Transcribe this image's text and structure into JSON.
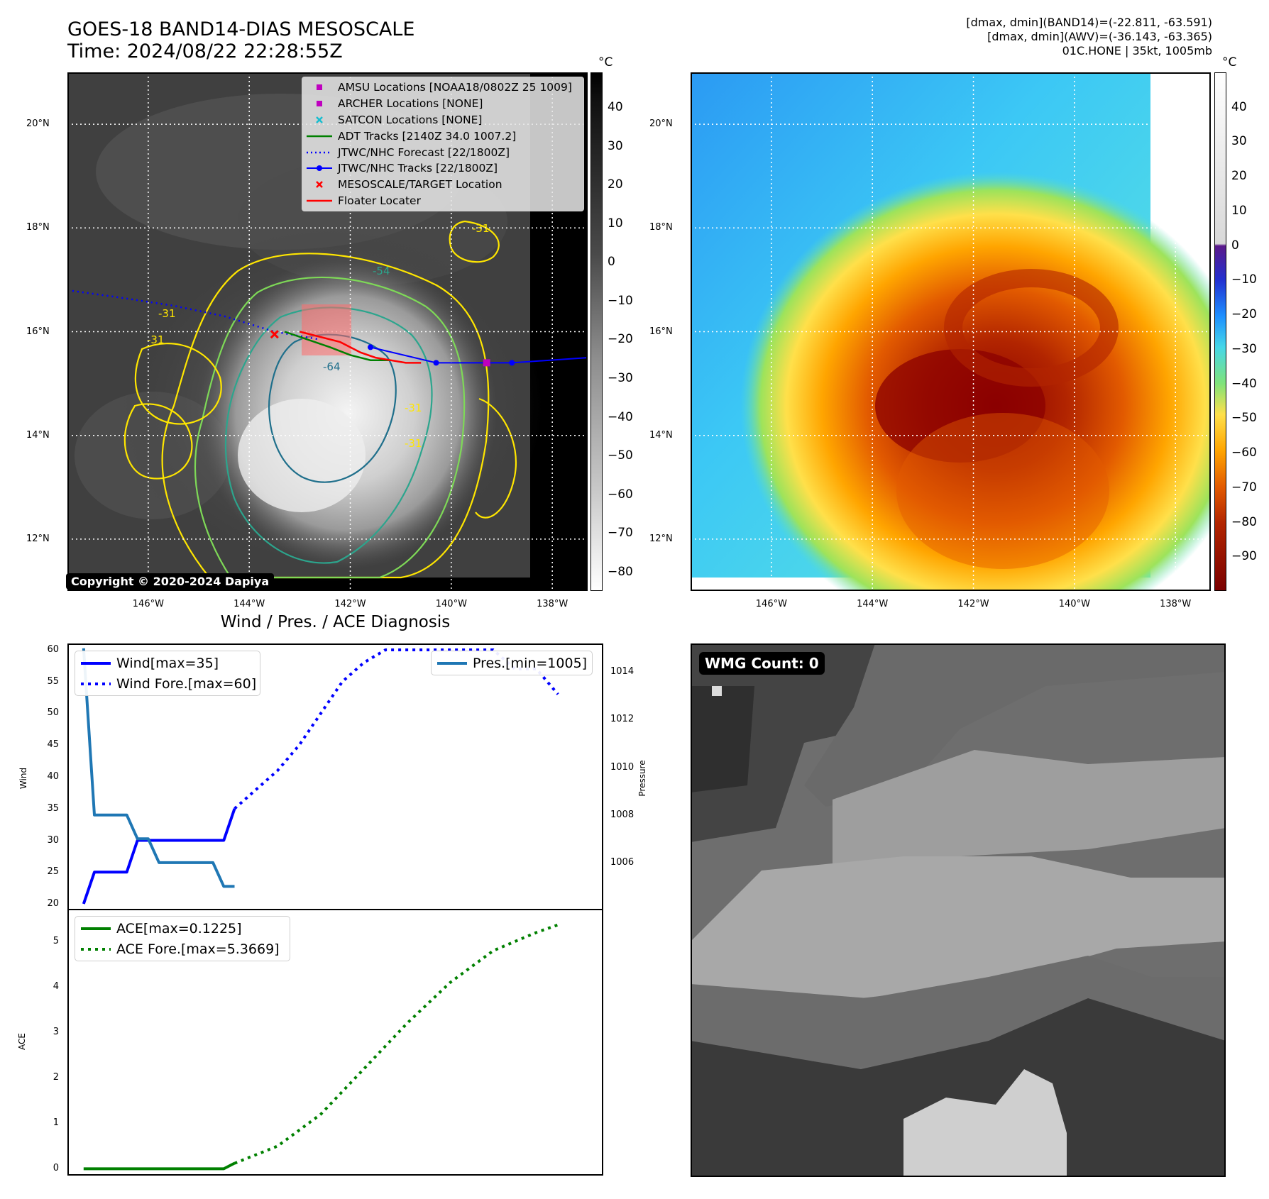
{
  "header": {
    "title_line1": "GOES-18 BAND14-DIAS MESOSCALE",
    "title_line2": "Time: 2024/08/22 22:28:55Z",
    "info_line1": "[dmax, dmin](BAND14)=(-22.811, -63.591)",
    "info_line2": "[dmax, dmin](AWV)=(-36.143, -63.365)",
    "info_line3": "01C.HONE | 35kt, 1005mb"
  },
  "map": {
    "lat_labels": [
      "20°N",
      "18°N",
      "16°N",
      "14°N",
      "12°N"
    ],
    "lon_labels": [
      "146°W",
      "144°W",
      "142°W",
      "140°W",
      "138°W"
    ],
    "lon_range": [
      -147.6,
      -137.3
    ],
    "lat_range": [
      11.0,
      21.0
    ],
    "copyright": "Copyright © 2020-2024 Dapiya",
    "contour_labels": [
      "-31",
      "-31",
      "-54",
      "-31",
      "-64",
      "-31",
      "-31"
    ],
    "tracks": {
      "forecast": [
        [
          -147.6,
          16.8
        ],
        [
          -146.5,
          16.65
        ],
        [
          -145.5,
          16.5
        ],
        [
          -144.5,
          16.3
        ],
        [
          -143.5,
          16.0
        ],
        [
          -142.6,
          15.85
        ]
      ],
      "jtwc": [
        [
          -141.6,
          15.7
        ],
        [
          -140.3,
          15.4
        ],
        [
          -139.3,
          15.4
        ],
        [
          -138.8,
          15.4
        ],
        [
          -137.3,
          15.5
        ]
      ],
      "adt": [
        [
          -143.3,
          16.0
        ],
        [
          -142.4,
          15.7
        ],
        [
          -142.0,
          15.55
        ],
        [
          -141.6,
          15.45
        ],
        [
          -141.2,
          15.45
        ]
      ],
      "floater": [
        [
          -143.0,
          16.0
        ],
        [
          -142.2,
          15.8
        ],
        [
          -141.8,
          15.6
        ],
        [
          -141.5,
          15.5
        ],
        [
          -140.9,
          15.4
        ],
        [
          -140.6,
          15.4
        ]
      ],
      "amsu_point": [
        -139.3,
        15.4
      ],
      "target_point": [
        -143.5,
        15.95
      ]
    },
    "legend": [
      {
        "label": "AMSU Locations [NOAA18/0802Z 25 1009]",
        "marker": "square",
        "color": "#bf00bf"
      },
      {
        "label": "ARCHER Locations [NONE]",
        "marker": "square",
        "color": "#bf00bf"
      },
      {
        "label": "SATCON Locations [NONE]",
        "marker": "x",
        "color": "#17becf"
      },
      {
        "label": "ADT Tracks [2140Z 34.0 1007.2]",
        "marker": "line",
        "color": "#008000"
      },
      {
        "label": "JTWC/NHC Forecast [22/1800Z]",
        "marker": "dotted",
        "color": "#0000ff"
      },
      {
        "label": "JTWC/NHC Tracks [22/1800Z]",
        "marker": "line-dot",
        "color": "#0000ff"
      },
      {
        "label": "MESOSCALE/TARGET Location",
        "marker": "x",
        "color": "#ff0000"
      },
      {
        "label": "Floater Locater",
        "marker": "line",
        "color": "#ff0000"
      }
    ]
  },
  "colorbars": {
    "unit": "°C",
    "gray_ticks": [
      "40",
      "30",
      "20",
      "10",
      "0",
      "−10",
      "−20",
      "−30",
      "−40",
      "−50",
      "−60",
      "−70",
      "−80"
    ],
    "gray_range": [
      -85,
      49
    ],
    "color_ticks": [
      "40",
      "30",
      "20",
      "10",
      "0",
      "−10",
      "−20",
      "−30",
      "−40",
      "−50",
      "−60",
      "−70",
      "−80",
      "−90"
    ],
    "color_range": [
      -100,
      50
    ]
  },
  "diagnosis": {
    "title": "Wind / Pres. / ACE Diagnosis",
    "wind_axis_label": "Wind",
    "pressure_axis_label": "Pressure",
    "ace_axis_label": "ACE",
    "legend_wind": "Wind[max=35]",
    "legend_wind_fore": "Wind Fore.[max=60]",
    "legend_pres": "Pres.[min=1005]",
    "legend_ace": "ACE[max=0.1225]",
    "legend_ace_fore": "ACE Fore.[max=5.3669]"
  },
  "wmg": {
    "label": "WMG Count: 0"
  },
  "chart_data": [
    {
      "type": "line",
      "x": [
        0,
        1,
        2,
        3,
        4,
        5,
        6,
        7,
        8,
        9,
        10,
        11,
        12,
        13,
        14,
        15,
        16
      ],
      "series": [
        {
          "name": "Wind[max=35]",
          "axis": "left",
          "x": [
            0,
            1,
            2,
            3,
            4,
            5,
            6,
            7,
            8,
            9,
            10,
            11,
            12,
            13,
            14
          ],
          "values": [
            20,
            25,
            25,
            25,
            25,
            30,
            30,
            30,
            30,
            30,
            30,
            30,
            30,
            30,
            35
          ]
        },
        {
          "name": "Wind Fore.[max=60]",
          "axis": "left",
          "style": "dotted",
          "x": [
            14,
            16,
            18,
            20,
            22,
            24,
            26,
            28,
            30,
            32,
            34,
            36,
            38,
            40,
            42,
            44
          ],
          "values": [
            35,
            38,
            41,
            45,
            50,
            55,
            58,
            60,
            60,
            60,
            60,
            60,
            60,
            57,
            57,
            53
          ]
        },
        {
          "name": "Pres.[min=1005]",
          "axis": "right",
          "x": [
            0,
            1,
            2,
            3,
            4,
            5,
            6,
            7,
            8,
            9,
            10,
            11,
            12,
            13,
            14
          ],
          "values": [
            1015,
            1008,
            1008,
            1008,
            1008,
            1007,
            1007,
            1006,
            1006,
            1006,
            1006,
            1006,
            1006,
            1005,
            1005
          ]
        }
      ],
      "ylabel": "Wind",
      "ylim": [
        19,
        61
      ],
      "y2label": "Pressure",
      "y2lim": [
        1004.0,
        1015.2
      ],
      "yticks": [
        20,
        25,
        30,
        35,
        40,
        45,
        50,
        55,
        60
      ],
      "y2ticks": [
        1006,
        1008,
        1010,
        1012,
        1014
      ],
      "xlim": [
        -1.5,
        48.2
      ]
    },
    {
      "type": "line",
      "series": [
        {
          "name": "ACE[max=0.1225]",
          "x": [
            0,
            13,
            14
          ],
          "values": [
            0,
            0,
            0.1225
          ]
        },
        {
          "name": "ACE Fore.[max=5.3669]",
          "style": "dotted",
          "x": [
            14,
            18,
            22,
            26,
            30,
            34,
            38,
            42,
            44
          ],
          "values": [
            0.12,
            0.5,
            1.2,
            2.2,
            3.2,
            4.1,
            4.8,
            5.2,
            5.3669
          ]
        }
      ],
      "ylabel": "ACE",
      "ylim": [
        -0.15,
        5.72
      ],
      "yticks": [
        0,
        1,
        2,
        3,
        4,
        5
      ],
      "xlim": [
        -1.5,
        48.2
      ]
    }
  ]
}
